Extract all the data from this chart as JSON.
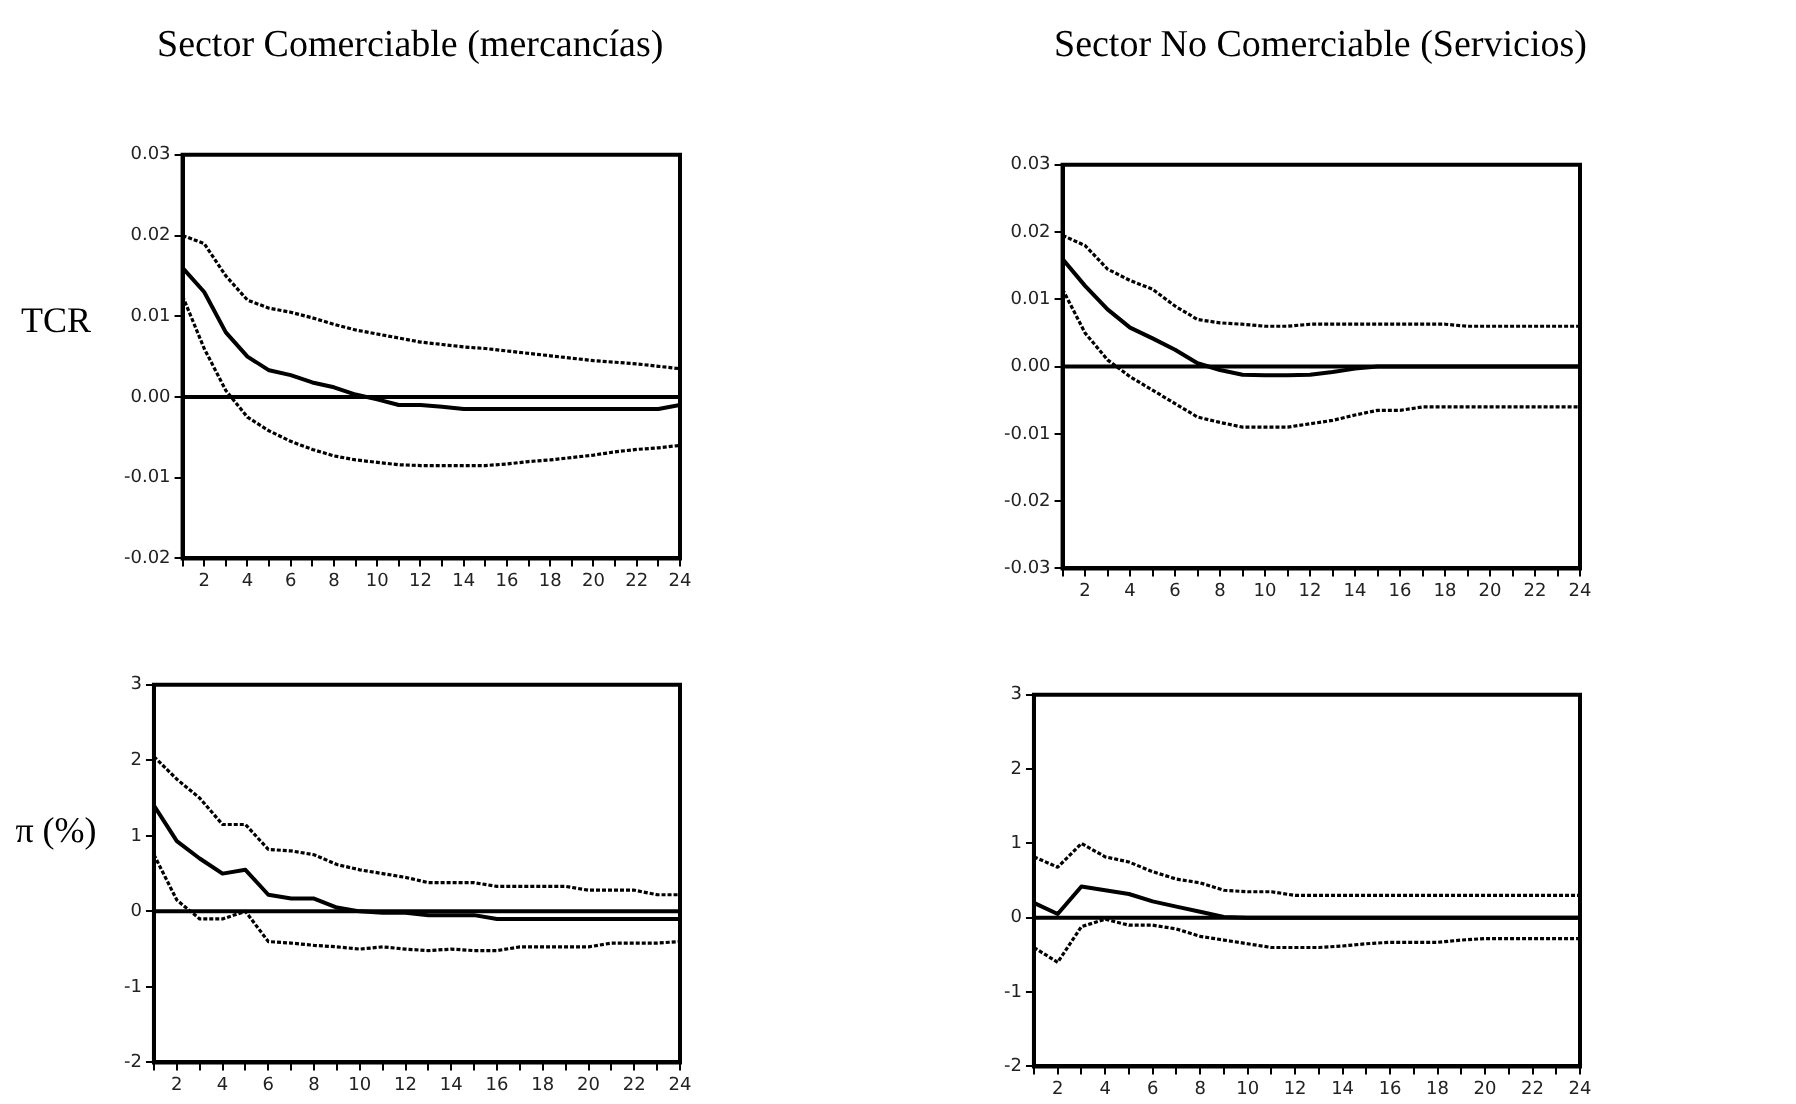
{
  "chart_data": [
    {
      "type": "line",
      "title": "Sector Comerciable (mercancías)",
      "ylabel": "TCR",
      "x": [
        1,
        2,
        3,
        4,
        5,
        6,
        7,
        8,
        9,
        10,
        11,
        12,
        13,
        14,
        15,
        16,
        17,
        18,
        19,
        20,
        21,
        22,
        23,
        24
      ],
      "xlim": [
        1,
        24
      ],
      "xticks": [
        {
          "value": 1,
          "label": null
        },
        2,
        {
          "value": 3,
          "label": null
        },
        4,
        {
          "value": 5,
          "label": null
        },
        6,
        {
          "value": 7,
          "label": null
        },
        8,
        {
          "value": 9,
          "label": null
        },
        10,
        {
          "value": 11,
          "label": null
        },
        12,
        {
          "value": 13,
          "label": null
        },
        14,
        {
          "value": 15,
          "label": null
        },
        16,
        {
          "value": 17,
          "label": null
        },
        18,
        {
          "value": 19,
          "label": null
        },
        20,
        {
          "value": 21,
          "label": null
        },
        22,
        {
          "value": 23,
          "label": null
        },
        24
      ],
      "ylim": [
        -0.02,
        0.03
      ],
      "yticks": [
        {
          "value": -0.02,
          "label": "-0.02"
        },
        {
          "value": -0.01,
          "label": "-0.01"
        },
        {
          "value": 0,
          "label": "0.00"
        },
        {
          "value": 0.01,
          "label": "0.01"
        },
        {
          "value": 0.02,
          "label": "0.02"
        },
        {
          "value": 0.03,
          "label": "0.03"
        }
      ],
      "grid": false,
      "legend": false,
      "marker": "none",
      "ref_lines": [
        {
          "axis": "y",
          "value": 0,
          "color": "#000000",
          "line_style": "solid"
        }
      ],
      "series": [
        {
          "color": "#000000",
          "line_style": "solid",
          "values": [
            0.016,
            0.013,
            0.008,
            0.005,
            0.0033,
            0.0027,
            0.0018,
            0.0012,
            0.0003,
            -0.0003,
            -0.001,
            -0.001,
            -0.0012,
            -0.0015,
            -0.0015,
            -0.0015,
            -0.0015,
            -0.0015,
            -0.0015,
            -0.0015,
            -0.0015,
            -0.0015,
            -0.0015,
            -0.001
          ]
        },
        {
          "color": "#000000",
          "line_style": "dotted",
          "values": [
            0.02,
            0.019,
            0.015,
            0.012,
            0.011,
            0.0105,
            0.0098,
            0.009,
            0.0083,
            0.0078,
            0.0073,
            0.0068,
            0.0065,
            0.0062,
            0.006,
            0.0057,
            0.0054,
            0.0051,
            0.0048,
            0.0045,
            0.0043,
            0.0041,
            0.0038,
            0.0035
          ]
        },
        {
          "color": "#000000",
          "line_style": "dotted",
          "values": [
            0.0125,
            0.006,
            0.0008,
            -0.0025,
            -0.0042,
            -0.0055,
            -0.0065,
            -0.0073,
            -0.0078,
            -0.0081,
            -0.0084,
            -0.0085,
            -0.0085,
            -0.0085,
            -0.0085,
            -0.0083,
            -0.008,
            -0.0078,
            -0.0075,
            -0.0072,
            -0.0068,
            -0.0065,
            -0.0063,
            -0.006
          ]
        }
      ]
    },
    {
      "type": "line",
      "title": "Sector No Comerciable (Servicios)",
      "x": [
        1,
        2,
        3,
        4,
        5,
        6,
        7,
        8,
        9,
        10,
        11,
        12,
        13,
        14,
        15,
        16,
        17,
        18,
        19,
        20,
        21,
        22,
        23,
        24
      ],
      "xlim": [
        1,
        24
      ],
      "xticks": [
        {
          "value": 1,
          "label": null
        },
        2,
        {
          "value": 3,
          "label": null
        },
        4,
        {
          "value": 5,
          "label": null
        },
        6,
        {
          "value": 7,
          "label": null
        },
        8,
        {
          "value": 9,
          "label": null
        },
        10,
        {
          "value": 11,
          "label": null
        },
        12,
        {
          "value": 13,
          "label": null
        },
        14,
        {
          "value": 15,
          "label": null
        },
        16,
        {
          "value": 17,
          "label": null
        },
        18,
        {
          "value": 19,
          "label": null
        },
        20,
        {
          "value": 21,
          "label": null
        },
        22,
        {
          "value": 23,
          "label": null
        },
        24
      ],
      "ylim": [
        -0.03,
        0.03
      ],
      "yticks": [
        {
          "value": -0.03,
          "label": "-0.03"
        },
        {
          "value": -0.02,
          "label": "-0.02"
        },
        {
          "value": -0.01,
          "label": "-0.01"
        },
        {
          "value": 0,
          "label": "0.00"
        },
        {
          "value": 0.01,
          "label": "0.01"
        },
        {
          "value": 0.02,
          "label": "0.02"
        },
        {
          "value": 0.03,
          "label": "0.03"
        }
      ],
      "grid": false,
      "legend": false,
      "marker": "none",
      "ref_lines": [
        {
          "axis": "y",
          "value": 0,
          "color": "#000000",
          "line_style": "solid"
        }
      ],
      "series": [
        {
          "color": "#000000",
          "line_style": "solid",
          "values": [
            0.016,
            0.012,
            0.0085,
            0.0058,
            0.0042,
            0.0025,
            0.0005,
            -0.0005,
            -0.0012,
            -0.0013,
            -0.0013,
            -0.0012,
            -0.0008,
            -0.0003,
            0,
            0,
            0,
            0,
            0,
            0,
            0,
            0,
            0,
            0
          ]
        },
        {
          "color": "#000000",
          "line_style": "dotted",
          "values": [
            0.0195,
            0.018,
            0.0145,
            0.0128,
            0.0115,
            0.009,
            0.007,
            0.0065,
            0.0063,
            0.006,
            0.006,
            0.0063,
            0.0063,
            0.0063,
            0.0063,
            0.0063,
            0.0063,
            0.0063,
            0.006,
            0.006,
            0.006,
            0.006,
            0.006,
            0.006
          ]
        },
        {
          "color": "#000000",
          "line_style": "dotted",
          "values": [
            0.0115,
            0.005,
            0.001,
            -0.0015,
            -0.0035,
            -0.0055,
            -0.0075,
            -0.0083,
            -0.009,
            -0.009,
            -0.009,
            -0.0085,
            -0.008,
            -0.0072,
            -0.0065,
            -0.0065,
            -0.006,
            -0.006,
            -0.006,
            -0.006,
            -0.006,
            -0.006,
            -0.006,
            -0.006
          ]
        }
      ]
    },
    {
      "type": "line",
      "ylabel": "π (%)",
      "x": [
        1,
        2,
        3,
        4,
        5,
        6,
        7,
        8,
        9,
        10,
        11,
        12,
        13,
        14,
        15,
        16,
        17,
        18,
        19,
        20,
        21,
        22,
        23,
        24
      ],
      "xlim": [
        1,
        24
      ],
      "xticks": [
        {
          "value": 1,
          "label": null
        },
        2,
        {
          "value": 3,
          "label": null
        },
        4,
        {
          "value": 5,
          "label": null
        },
        6,
        {
          "value": 7,
          "label": null
        },
        8,
        {
          "value": 9,
          "label": null
        },
        10,
        {
          "value": 11,
          "label": null
        },
        12,
        {
          "value": 13,
          "label": null
        },
        14,
        {
          "value": 15,
          "label": null
        },
        16,
        {
          "value": 17,
          "label": null
        },
        18,
        {
          "value": 19,
          "label": null
        },
        20,
        {
          "value": 21,
          "label": null
        },
        22,
        {
          "value": 23,
          "label": null
        },
        24
      ],
      "ylim": [
        -2,
        3
      ],
      "yticks": [
        -2,
        -1,
        0,
        1,
        2,
        3
      ],
      "grid": false,
      "legend": false,
      "marker": "none",
      "ref_lines": [
        {
          "axis": "y",
          "value": 0,
          "color": "#000000",
          "line_style": "solid"
        }
      ],
      "series": [
        {
          "color": "#000000",
          "line_style": "solid",
          "values": [
            1.4,
            0.93,
            0.7,
            0.5,
            0.55,
            0.22,
            0.17,
            0.17,
            0.05,
            0,
            -0.02,
            -0.02,
            -0.05,
            -0.05,
            -0.05,
            -0.1,
            -0.1,
            -0.1,
            -0.1,
            -0.1,
            -0.1,
            -0.1,
            -0.1,
            -0.1
          ]
        },
        {
          "color": "#000000",
          "line_style": "dotted",
          "values": [
            2.05,
            1.75,
            1.5,
            1.15,
            1.15,
            0.82,
            0.8,
            0.75,
            0.62,
            0.55,
            0.5,
            0.45,
            0.38,
            0.38,
            0.38,
            0.33,
            0.33,
            0.33,
            0.33,
            0.28,
            0.28,
            0.28,
            0.22,
            0.22
          ]
        },
        {
          "color": "#000000",
          "line_style": "dotted",
          "values": [
            0.75,
            0.15,
            -0.1,
            -0.1,
            0,
            -0.4,
            -0.42,
            -0.45,
            -0.47,
            -0.5,
            -0.47,
            -0.5,
            -0.52,
            -0.5,
            -0.52,
            -0.52,
            -0.47,
            -0.47,
            -0.47,
            -0.47,
            -0.42,
            -0.42,
            -0.42,
            -0.4
          ]
        }
      ]
    },
    {
      "type": "line",
      "x": [
        1,
        2,
        3,
        4,
        5,
        6,
        7,
        8,
        9,
        10,
        11,
        12,
        13,
        14,
        15,
        16,
        17,
        18,
        19,
        20,
        21,
        22,
        23,
        24
      ],
      "xlim": [
        1,
        24
      ],
      "xticks": [
        {
          "value": 1,
          "label": null
        },
        2,
        {
          "value": 3,
          "label": null
        },
        4,
        {
          "value": 5,
          "label": null
        },
        6,
        {
          "value": 7,
          "label": null
        },
        8,
        {
          "value": 9,
          "label": null
        },
        10,
        {
          "value": 11,
          "label": null
        },
        12,
        {
          "value": 13,
          "label": null
        },
        14,
        {
          "value": 15,
          "label": null
        },
        16,
        {
          "value": 17,
          "label": null
        },
        18,
        {
          "value": 19,
          "label": null
        },
        20,
        {
          "value": 21,
          "label": null
        },
        22,
        {
          "value": 23,
          "label": null
        },
        24
      ],
      "ylim": [
        -2,
        3
      ],
      "yticks": [
        -2,
        -1,
        0,
        1,
        2,
        3
      ],
      "grid": false,
      "legend": false,
      "marker": "none",
      "ref_lines": [
        {
          "axis": "y",
          "value": 0,
          "color": "#000000",
          "line_style": "solid"
        }
      ],
      "series": [
        {
          "color": "#000000",
          "line_style": "solid",
          "values": [
            0.2,
            0.05,
            0.42,
            0.37,
            0.32,
            0.22,
            0.15,
            0.08,
            0.01,
            0,
            0,
            0,
            0,
            0,
            0,
            0,
            0,
            0,
            0,
            0,
            0,
            0,
            0,
            0
          ]
        },
        {
          "color": "#000000",
          "line_style": "dotted",
          "values": [
            0.82,
            0.68,
            1.0,
            0.82,
            0.75,
            0.62,
            0.52,
            0.47,
            0.37,
            0.35,
            0.35,
            0.3,
            0.3,
            0.3,
            0.3,
            0.3,
            0.3,
            0.3,
            0.3,
            0.3,
            0.3,
            0.3,
            0.3,
            0.3
          ]
        },
        {
          "color": "#000000",
          "line_style": "dotted",
          "values": [
            -0.4,
            -0.6,
            -0.12,
            -0.02,
            -0.1,
            -0.1,
            -0.15,
            -0.25,
            -0.3,
            -0.35,
            -0.4,
            -0.4,
            -0.4,
            -0.38,
            -0.35,
            -0.33,
            -0.33,
            -0.33,
            -0.3,
            -0.28,
            -0.28,
            -0.28,
            -0.28,
            -0.28
          ]
        }
      ]
    }
  ]
}
